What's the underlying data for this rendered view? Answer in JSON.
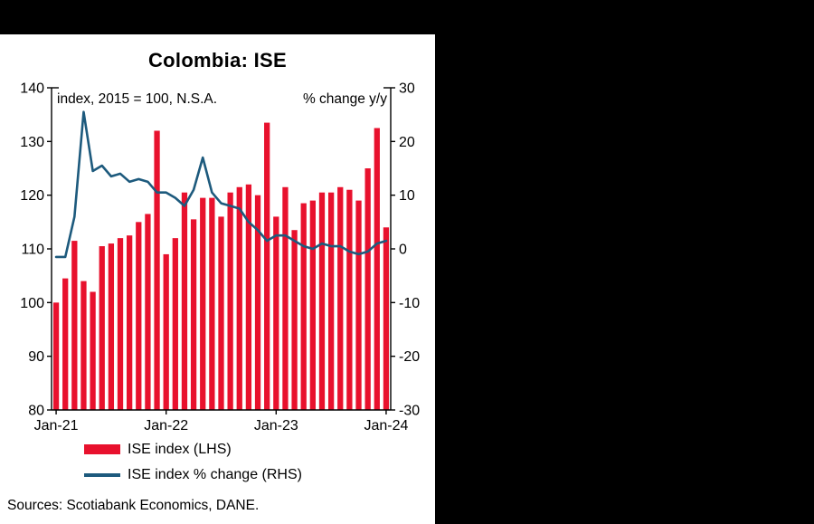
{
  "panel": {
    "title": "Colombia: ISE",
    "annotation_left": "index, 2015 = 100, N.S.A.",
    "annotation_right": "% change y/y",
    "legend": [
      {
        "type": "bar",
        "label": "ISE index (LHS)",
        "color": "#e8112d"
      },
      {
        "type": "line",
        "label": "ISE index % change (RHS)",
        "color": "#1d5a7d"
      }
    ],
    "source": "Sources: Scotiabank Economics, DANE."
  },
  "chart_data": {
    "type": "combo",
    "title": "Colombia: ISE",
    "categories": [
      "Jan-21",
      "Feb-21",
      "Mar-21",
      "Apr-21",
      "May-21",
      "Jun-21",
      "Jul-21",
      "Aug-21",
      "Sep-21",
      "Oct-21",
      "Nov-21",
      "Dec-21",
      "Jan-22",
      "Feb-22",
      "Mar-22",
      "Apr-22",
      "May-22",
      "Jun-22",
      "Jul-22",
      "Aug-22",
      "Sep-22",
      "Oct-22",
      "Nov-22",
      "Dec-22",
      "Jan-23",
      "Feb-23",
      "Mar-23",
      "Apr-23",
      "May-23",
      "Jun-23",
      "Jul-23",
      "Aug-23",
      "Sep-23",
      "Oct-23",
      "Nov-23",
      "Dec-23",
      "Jan-24"
    ],
    "series": [
      {
        "name": "ISE index (LHS)",
        "type": "bar",
        "axis": "left",
        "color": "#e8112d",
        "values": [
          100,
          104.5,
          111.5,
          104,
          102,
          110.5,
          111,
          112,
          112.5,
          115,
          116.5,
          132,
          109,
          112,
          120.5,
          115.5,
          119.5,
          119.5,
          116,
          120.5,
          121.5,
          122,
          120,
          133.5,
          116,
          121.5,
          113.5,
          118.5,
          119,
          120.5,
          120.5,
          121.5,
          121,
          119,
          125,
          132.5,
          114
        ]
      },
      {
        "name": "ISE index % change (RHS)",
        "type": "line",
        "axis": "right",
        "color": "#1d5a7d",
        "values": [
          -1.5,
          -1.5,
          6,
          25.5,
          14.5,
          15.5,
          13.5,
          14,
          12.5,
          13,
          12.5,
          10.5,
          10.5,
          9.5,
          8,
          11,
          17,
          10.5,
          8.5,
          8,
          7.5,
          5,
          3.5,
          1.5,
          2.5,
          2.5,
          1.5,
          0.5,
          0,
          1,
          0.5,
          0.5,
          -0.5,
          -1,
          -0.5,
          1,
          1.5
        ]
      }
    ],
    "left_axis": {
      "min": 80,
      "max": 140,
      "ticks": [
        80,
        90,
        100,
        110,
        120,
        130,
        140
      ]
    },
    "right_axis": {
      "min": -30,
      "max": 30,
      "ticks": [
        -30,
        -20,
        -10,
        0,
        10,
        20,
        30
      ]
    },
    "x_ticks": [
      {
        "index": 0,
        "label": "Jan-21"
      },
      {
        "index": 12,
        "label": "Jan-22"
      },
      {
        "index": 24,
        "label": "Jan-23"
      },
      {
        "index": 36,
        "label": "Jan-24"
      }
    ],
    "grid": false,
    "legend_position": "bottom"
  }
}
